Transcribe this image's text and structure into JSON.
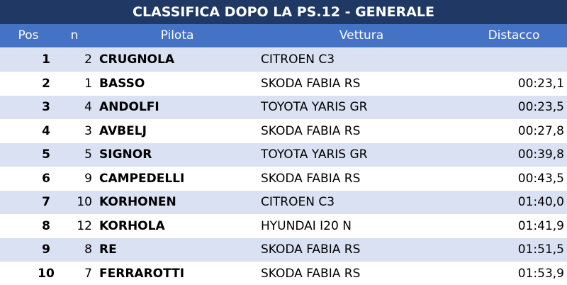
{
  "table": {
    "title": "CLASSIFICA DOPO LA PS.12 - GENERALE",
    "header": {
      "pos": "Pos",
      "n": "n",
      "driver": "Pilota",
      "car": "Vettura",
      "gap": "Distacco"
    },
    "rows": [
      {
        "pos": 1,
        "n": 2,
        "driver": "CRUGNOLA",
        "car": "CITROEN C3"
      },
      {
        "pos": 2,
        "n": 1,
        "driver": "BASSO",
        "car": "SKODA FABIA RS",
        "gap": "00:23,1"
      },
      {
        "pos": 3,
        "n": 4,
        "driver": "ANDOLFI",
        "car": "TOYOTA YARIS GR",
        "gap": "00:23,5"
      },
      {
        "pos": 4,
        "n": 3,
        "driver": "AVBELJ",
        "car": "SKODA FABIA RS",
        "gap": "00:27,8"
      },
      {
        "pos": 5,
        "n": 5,
        "driver": "SIGNOR",
        "car": "TOYOTA YARIS GR",
        "gap": "00:39,8"
      },
      {
        "pos": 6,
        "n": 9,
        "driver": "CAMPEDELLI",
        "car": "SKODA FABIA RS",
        "gap": "00:43,5"
      },
      {
        "pos": 7,
        "n": 10,
        "driver": "KORHONEN",
        "car": "CITROEN C3",
        "gap": "01:40,0"
      },
      {
        "pos": 8,
        "n": 12,
        "driver": "KORHOLA",
        "car": "HYUNDAI I20 N",
        "gap": "01:41,9"
      },
      {
        "pos": 9,
        "n": 8,
        "driver": "RE",
        "car": "SKODA FABIA RS",
        "gap": "01:51,5"
      },
      {
        "pos": 10,
        "n": 7,
        "driver": "FERRAROTTI",
        "car": "SKODA FABIA RS",
        "gap": "01:53,9"
      }
    ]
  }
}
